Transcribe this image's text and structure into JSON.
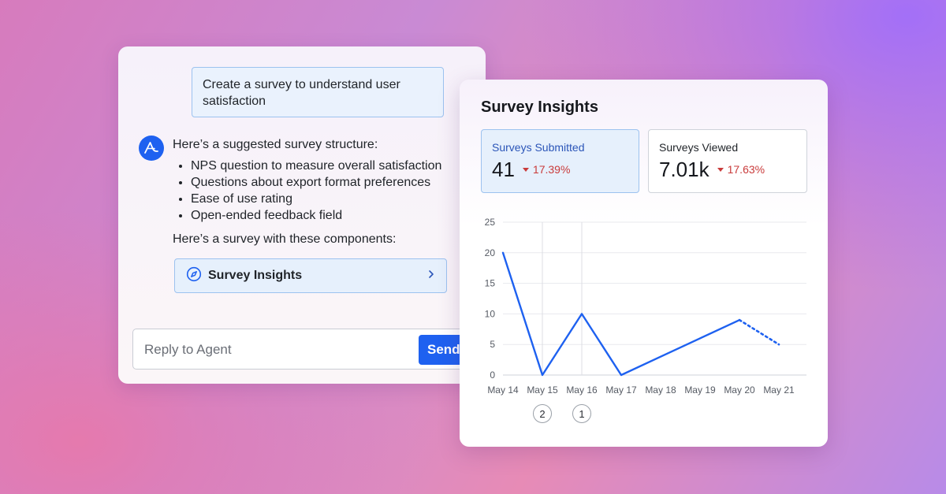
{
  "chat": {
    "user_message": "Create a survey to understand user satisfaction",
    "agent_intro": "Here’s a suggested survey structure:",
    "agent_items": [
      "NPS question to measure overall satisfaction",
      "Questions about export format preferences",
      "Ease of use rating",
      "Open-ended feedback field"
    ],
    "agent_outro": "Here’s a survey with these components:",
    "link_card": {
      "label": "Survey Insights",
      "icon": "compass-icon"
    },
    "reply": {
      "placeholder": "Reply to Agent",
      "value": "",
      "send_label": "Send"
    }
  },
  "insights": {
    "title": "Survey Insights",
    "kpis": [
      {
        "label": "Surveys Submitted",
        "value": "41",
        "change": "17.39%",
        "direction": "down",
        "selected": true
      },
      {
        "label": "Surveys Viewed",
        "value": "7.01k",
        "change": "17.63%",
        "direction": "down",
        "selected": false
      }
    ],
    "annotations": [
      {
        "label": "2",
        "date": "May 15"
      },
      {
        "label": "1",
        "date": "May 16"
      }
    ]
  },
  "colors": {
    "accent": "#1e61f0",
    "negative": "#c93b3b",
    "selected_bg": "#e6f0fc",
    "selected_border": "#9cc2ef"
  },
  "chart_data": {
    "type": "line",
    "categories": [
      "May 14",
      "May 15",
      "May 16",
      "May 17",
      "May 18",
      "May 19",
      "May 20",
      "May 21"
    ],
    "series": [
      {
        "values": [
          20,
          0,
          10,
          0,
          3,
          6,
          9,
          5
        ],
        "incomplete_from_index": 6
      }
    ],
    "y_ticks": [
      0,
      5,
      10,
      15,
      20,
      25
    ],
    "ylim": [
      0,
      25
    ],
    "grid": "horizontal",
    "annotated_categories": [
      "May 15",
      "May 16"
    ]
  }
}
